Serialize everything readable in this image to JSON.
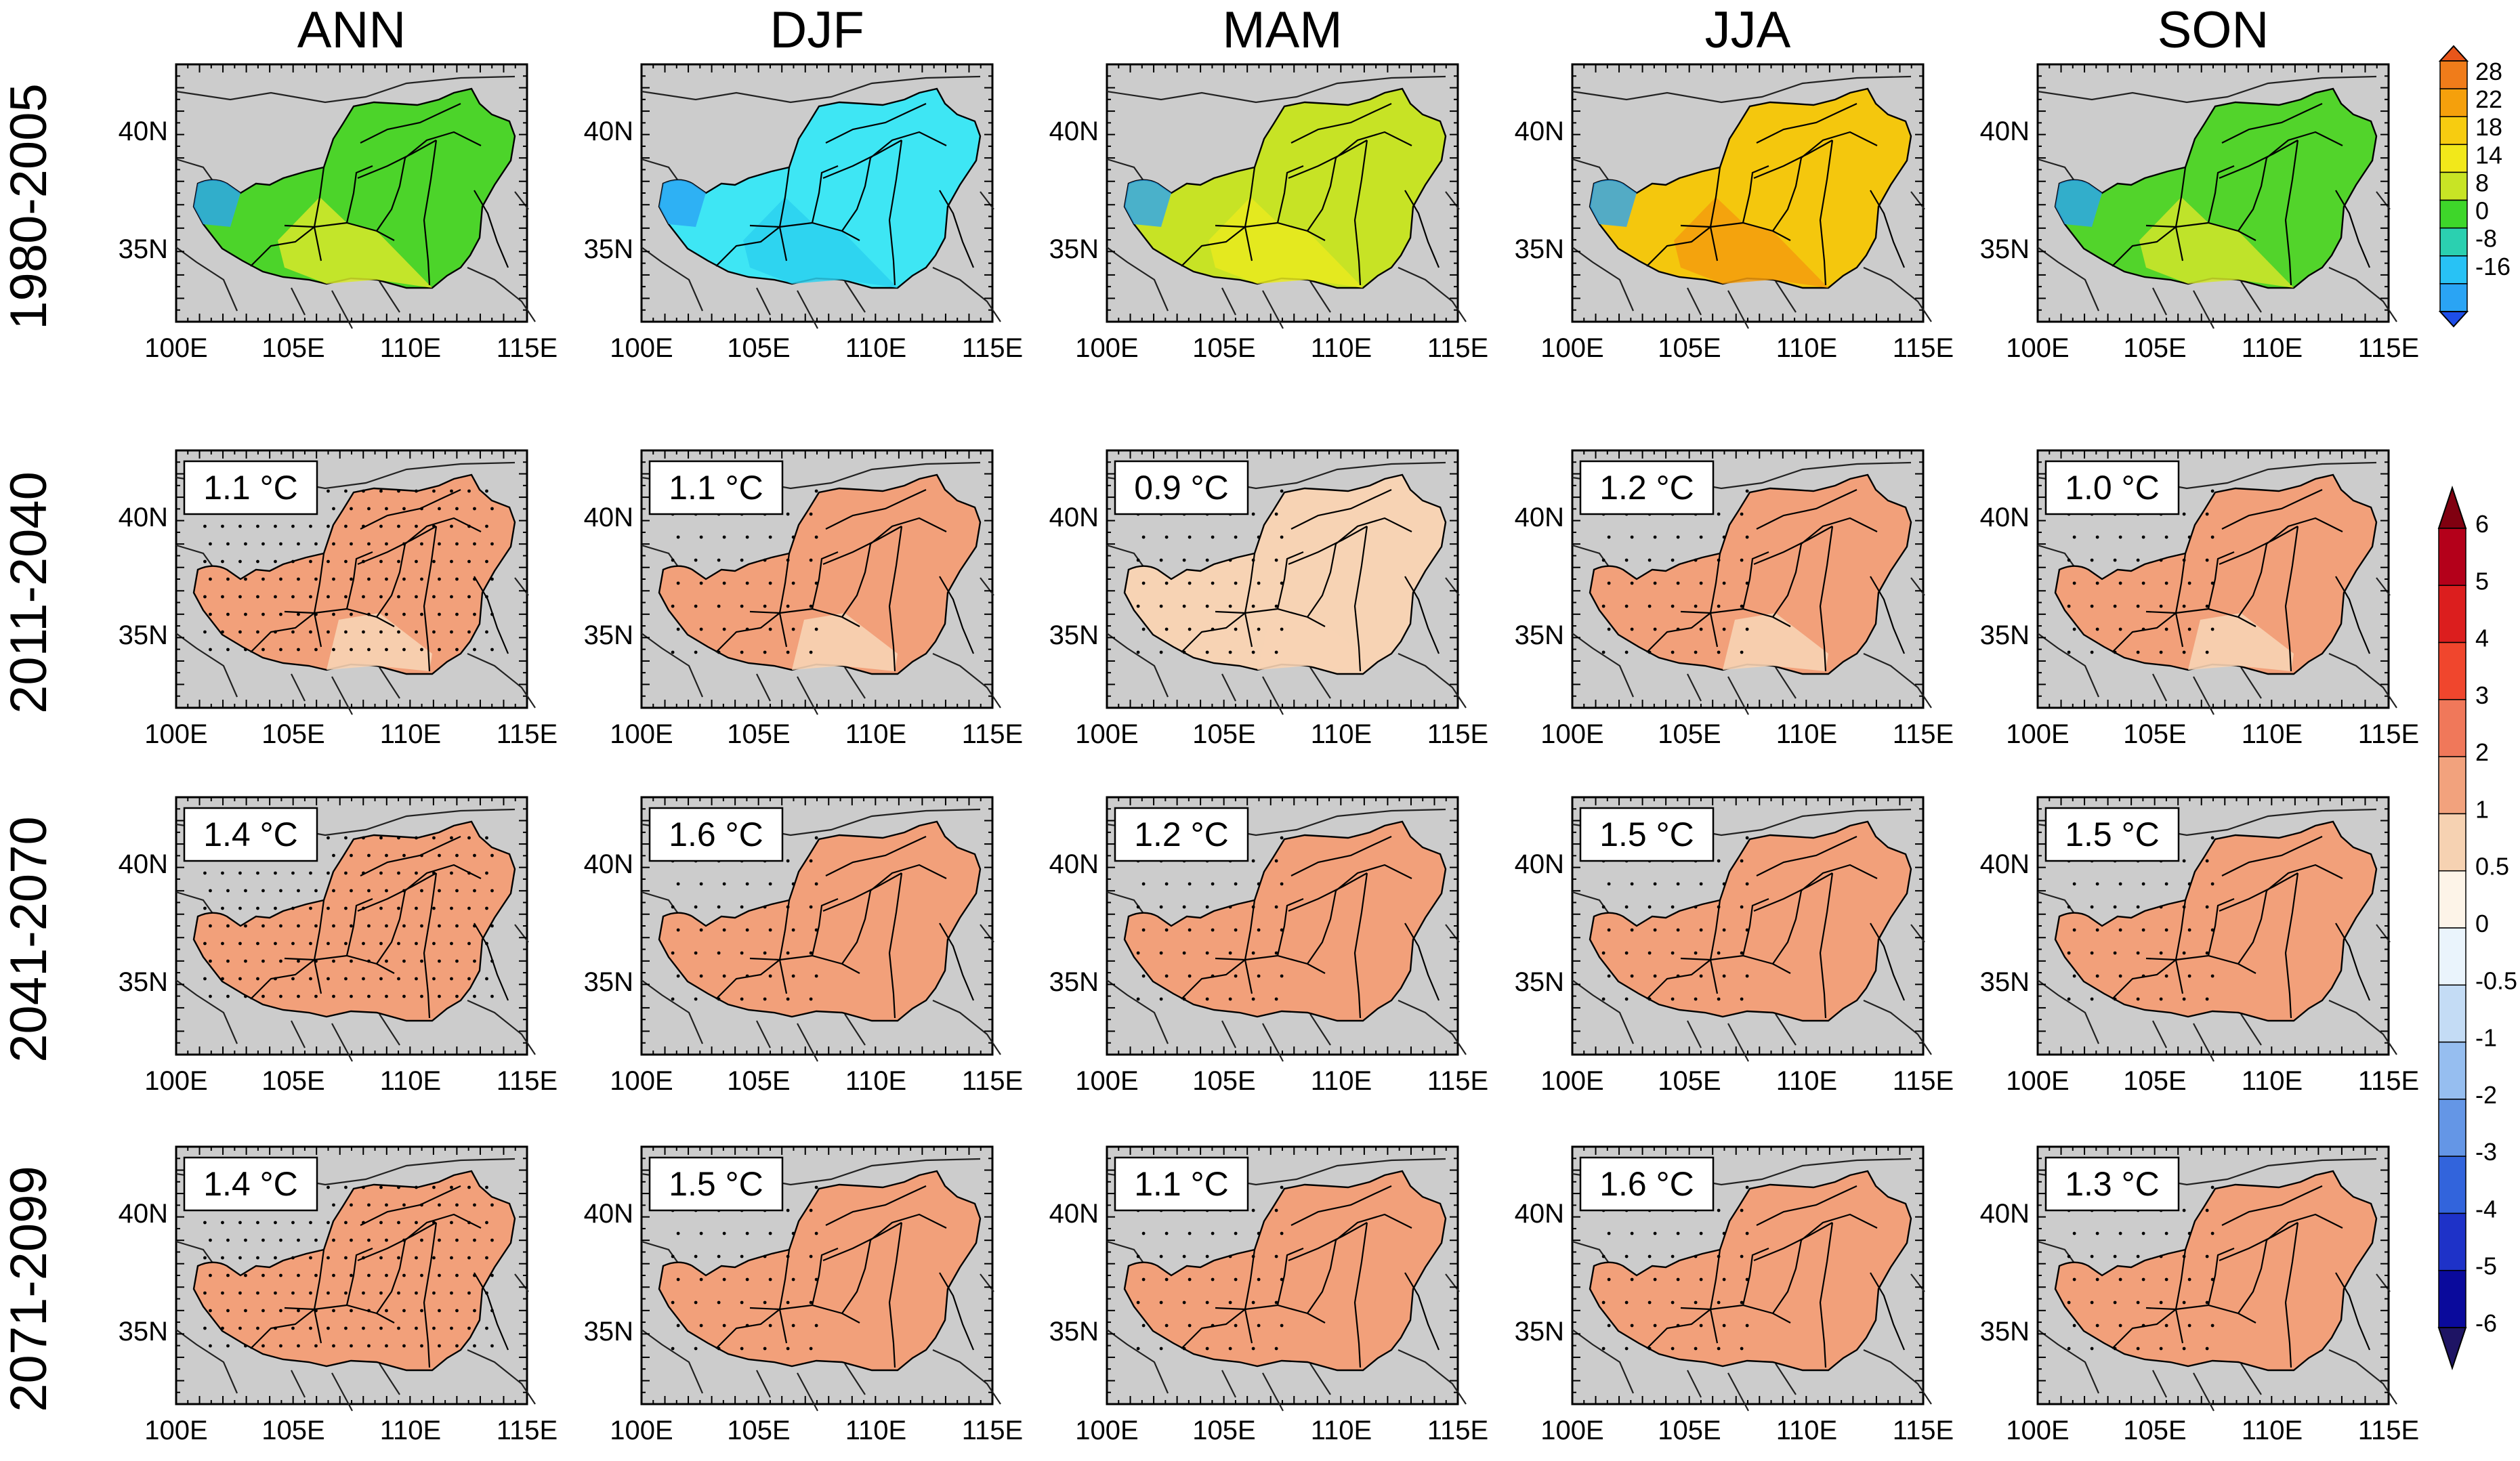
{
  "figure": {
    "columns": [
      "ANN",
      "DJF",
      "MAM",
      "JJA",
      "SON"
    ],
    "rows": [
      "1980-2005",
      "2011-2040",
      "2041-2070",
      "2071-2099"
    ],
    "lon_ticks": [
      "100E",
      "105E",
      "110E",
      "115E"
    ],
    "lat_ticks": [
      "40N",
      "35N"
    ],
    "anomalies": [
      [
        "1.1 °C",
        "1.1 °C",
        "0.9 °C",
        "1.2 °C",
        "1.0 °C"
      ],
      [
        "1.4 °C",
        "1.6 °C",
        "1.2 °C",
        "1.5 °C",
        "1.5 °C"
      ],
      [
        "1.4 °C",
        "1.5 °C",
        "1.1 °C",
        "1.6 °C",
        "1.3 °C"
      ]
    ],
    "baseline_colorbar": {
      "labels": [
        "28",
        "22",
        "18",
        "14",
        "8",
        "0",
        "-8",
        "-16"
      ],
      "colors": [
        "#f07c1a",
        "#f5a00c",
        "#f7cc10",
        "#f2e81a",
        "#c8e425",
        "#3ed62a",
        "#2bd0b0",
        "#28c2f5",
        "#2aa4f4"
      ]
    },
    "anomaly_colorbar": {
      "labels": [
        "6",
        "5",
        "4",
        "3",
        "2",
        "1",
        "0.5",
        "0",
        "-0.5",
        "-1",
        "-2",
        "-3",
        "-4",
        "-5",
        "-6"
      ],
      "colors": [
        "#800010",
        "#b4001a",
        "#dc1e1e",
        "#f0462d",
        "#f0785a",
        "#f2a27d",
        "#f6d2b2",
        "#fdf4e8",
        "#eaf4fc",
        "#c4dcf5",
        "#96bef0",
        "#6496e6",
        "#3264dc",
        "#1e32c8",
        "#0a0a9c",
        "#1e1464"
      ]
    },
    "map_colors": {
      "background": "#cccccc",
      "baseline": {
        "ANN": "#4cd42a",
        "DJF": "#3ee6f4",
        "MAM": "#c7e325",
        "JJA": "#f4c70d",
        "SON": "#52d42b"
      },
      "future": {
        "warm": "#f2a07a",
        "light": "#f7d3b4"
      }
    }
  }
}
